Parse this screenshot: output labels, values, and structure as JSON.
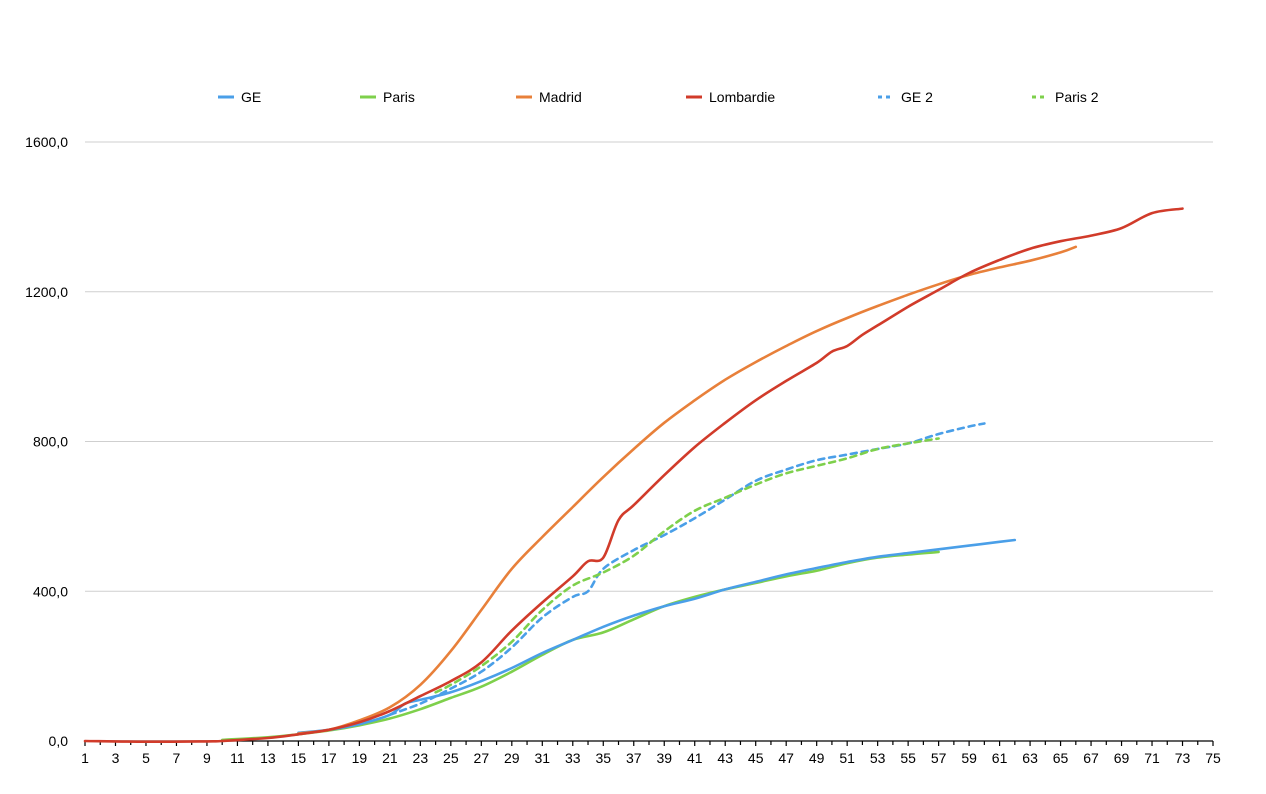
{
  "chart_data": {
    "type": "line",
    "title": "",
    "xlabel": "",
    "ylabel": "",
    "xlim": [
      1,
      75
    ],
    "ylim": [
      0,
      1600
    ],
    "y_ticks": [
      "0,0",
      "400,0",
      "800,0",
      "1200,0",
      "1600,0"
    ],
    "y_tick_values": [
      0,
      400,
      800,
      1200,
      1600
    ],
    "x_tick_values": [
      1,
      3,
      5,
      7,
      9,
      11,
      13,
      15,
      17,
      19,
      21,
      23,
      25,
      27,
      29,
      31,
      33,
      35,
      37,
      39,
      41,
      43,
      45,
      47,
      49,
      51,
      53,
      55,
      57,
      59,
      61,
      63,
      65,
      67,
      69,
      71,
      73,
      75
    ],
    "grid": true,
    "legend_position": "top",
    "series": [
      {
        "name": "GE",
        "color": "#4a9fe8",
        "dash": false,
        "points": [
          [
            15,
            22
          ],
          [
            17,
            30
          ],
          [
            19,
            45
          ],
          [
            21,
            70
          ],
          [
            22,
            100
          ],
          [
            23,
            110
          ],
          [
            25,
            130
          ],
          [
            27,
            160
          ],
          [
            29,
            195
          ],
          [
            31,
            235
          ],
          [
            33,
            270
          ],
          [
            35,
            305
          ],
          [
            37,
            335
          ],
          [
            39,
            360
          ],
          [
            41,
            380
          ],
          [
            43,
            405
          ],
          [
            45,
            425
          ],
          [
            47,
            445
          ],
          [
            49,
            462
          ],
          [
            51,
            478
          ],
          [
            53,
            492
          ],
          [
            55,
            502
          ],
          [
            57,
            512
          ],
          [
            59,
            522
          ],
          [
            61,
            532
          ],
          [
            62,
            537
          ]
        ]
      },
      {
        "name": "Paris",
        "color": "#7ed04b",
        "dash": false,
        "points": [
          [
            10,
            3
          ],
          [
            13,
            10
          ],
          [
            15,
            18
          ],
          [
            17,
            28
          ],
          [
            19,
            42
          ],
          [
            21,
            60
          ],
          [
            23,
            85
          ],
          [
            25,
            115
          ],
          [
            27,
            145
          ],
          [
            29,
            185
          ],
          [
            31,
            230
          ],
          [
            33,
            270
          ],
          [
            35,
            290
          ],
          [
            37,
            325
          ],
          [
            39,
            360
          ],
          [
            41,
            385
          ],
          [
            43,
            405
          ],
          [
            45,
            422
          ],
          [
            47,
            440
          ],
          [
            49,
            455
          ],
          [
            51,
            475
          ],
          [
            53,
            490
          ],
          [
            55,
            498
          ],
          [
            57,
            505
          ]
        ]
      },
      {
        "name": "Madrid",
        "color": "#e8803a",
        "dash": false,
        "points": [
          [
            15,
            20
          ],
          [
            17,
            30
          ],
          [
            19,
            55
          ],
          [
            21,
            90
          ],
          [
            23,
            150
          ],
          [
            25,
            240
          ],
          [
            27,
            350
          ],
          [
            29,
            460
          ],
          [
            31,
            545
          ],
          [
            33,
            625
          ],
          [
            35,
            705
          ],
          [
            37,
            780
          ],
          [
            39,
            850
          ],
          [
            41,
            910
          ],
          [
            43,
            965
          ],
          [
            45,
            1012
          ],
          [
            47,
            1055
          ],
          [
            49,
            1095
          ],
          [
            51,
            1130
          ],
          [
            53,
            1162
          ],
          [
            55,
            1192
          ],
          [
            57,
            1220
          ],
          [
            59,
            1245
          ],
          [
            61,
            1265
          ],
          [
            63,
            1283
          ],
          [
            65,
            1305
          ],
          [
            66,
            1320
          ]
        ]
      },
      {
        "name": "Lombardie",
        "color": "#d13b2a",
        "dash": false,
        "points": [
          [
            1,
            0
          ],
          [
            5,
            -2
          ],
          [
            9,
            -1
          ],
          [
            10,
            0
          ],
          [
            13,
            8
          ],
          [
            15,
            18
          ],
          [
            17,
            30
          ],
          [
            19,
            50
          ],
          [
            21,
            80
          ],
          [
            23,
            120
          ],
          [
            25,
            160
          ],
          [
            27,
            210
          ],
          [
            29,
            295
          ],
          [
            31,
            370
          ],
          [
            33,
            440
          ],
          [
            34,
            480
          ],
          [
            35,
            490
          ],
          [
            36,
            590
          ],
          [
            37,
            630
          ],
          [
            39,
            710
          ],
          [
            41,
            785
          ],
          [
            43,
            850
          ],
          [
            45,
            910
          ],
          [
            47,
            962
          ],
          [
            49,
            1010
          ],
          [
            50,
            1040
          ],
          [
            51,
            1055
          ],
          [
            52,
            1085
          ],
          [
            53,
            1110
          ],
          [
            55,
            1160
          ],
          [
            57,
            1205
          ],
          [
            59,
            1250
          ],
          [
            61,
            1285
          ],
          [
            63,
            1315
          ],
          [
            65,
            1335
          ],
          [
            67,
            1350
          ],
          [
            69,
            1370
          ],
          [
            71,
            1410
          ],
          [
            73,
            1422
          ]
        ]
      },
      {
        "name": "GE 2",
        "color": "#4a9fe8",
        "dash": true,
        "points": [
          [
            21,
            70
          ],
          [
            23,
            100
          ],
          [
            25,
            140
          ],
          [
            27,
            185
          ],
          [
            29,
            250
          ],
          [
            31,
            330
          ],
          [
            33,
            385
          ],
          [
            34,
            400
          ],
          [
            35,
            460
          ],
          [
            37,
            510
          ],
          [
            39,
            550
          ],
          [
            41,
            595
          ],
          [
            43,
            645
          ],
          [
            45,
            695
          ],
          [
            47,
            725
          ],
          [
            49,
            750
          ],
          [
            51,
            765
          ],
          [
            53,
            780
          ],
          [
            55,
            795
          ],
          [
            57,
            820
          ],
          [
            59,
            840
          ],
          [
            60,
            848
          ]
        ]
      },
      {
        "name": "Paris 2",
        "color": "#7ed04b",
        "dash": true,
        "points": [
          [
            24,
            130
          ],
          [
            25,
            150
          ],
          [
            27,
            200
          ],
          [
            29,
            265
          ],
          [
            31,
            350
          ],
          [
            33,
            415
          ],
          [
            35,
            450
          ],
          [
            37,
            495
          ],
          [
            39,
            560
          ],
          [
            41,
            615
          ],
          [
            43,
            650
          ],
          [
            45,
            685
          ],
          [
            47,
            715
          ],
          [
            49,
            735
          ],
          [
            51,
            755
          ],
          [
            53,
            780
          ],
          [
            55,
            795
          ],
          [
            57,
            808
          ]
        ]
      }
    ]
  }
}
